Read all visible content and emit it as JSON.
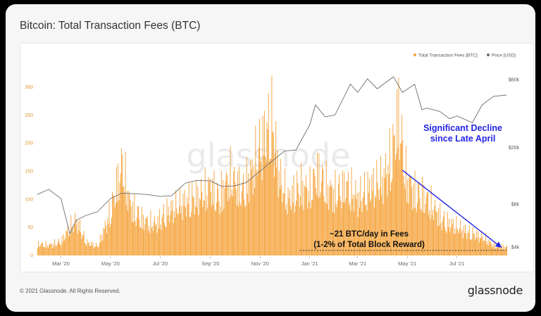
{
  "page": {
    "title": "Bitcoin: Total Transaction Fees (BTC)"
  },
  "footer": {
    "copyright": "© 2021 Glassnode. All Rights Reserved.",
    "brand": "glassnode"
  },
  "watermark": "glassnode",
  "colors": {
    "fees": "#f5a33a",
    "price": "#6e6e6e",
    "arrow": "#2424e6",
    "decline_text": "#2424e6",
    "background": "#f6f6f6"
  },
  "chart_data": {
    "type": "bar",
    "title": "Bitcoin: Total Transaction Fees (BTC)",
    "x_start": "2020-02-01",
    "x_end": "2021-08-31",
    "x_ticks": [
      "Mar '20",
      "May '20",
      "Jul '20",
      "Sep '20",
      "Nov '20",
      "Jan '21",
      "Mar '21",
      "May '21",
      "Jul '21"
    ],
    "y_left": {
      "ticks": [
        "0",
        "50",
        "100",
        "150",
        "200",
        "250",
        "300"
      ],
      "ylim": [
        0,
        330
      ]
    },
    "y_right": {
      "ticks": [
        "$4k",
        "$8k",
        "$20k",
        "$60k"
      ],
      "scale": "log",
      "ylim": [
        3500,
        70000
      ]
    },
    "legend": {
      "position": "top-right",
      "entries": [
        "Total Transaction Fees [BTC]",
        "Price [USD]"
      ]
    },
    "grid": false,
    "series": [
      {
        "name": "Total Transaction Fees [BTC]",
        "axis": "left",
        "style": "bar",
        "x": [
          "2020-02-01",
          "2020-02-15",
          "2020-03-01",
          "2020-03-12",
          "2020-03-20",
          "2020-04-01",
          "2020-04-15",
          "2020-05-01",
          "2020-05-08",
          "2020-05-15",
          "2020-05-25",
          "2020-06-10",
          "2020-06-25",
          "2020-07-10",
          "2020-07-25",
          "2020-08-05",
          "2020-08-20",
          "2020-09-01",
          "2020-09-10",
          "2020-09-25",
          "2020-10-10",
          "2020-10-20",
          "2020-10-27",
          "2020-11-05",
          "2020-11-15",
          "2020-11-25",
          "2020-12-05",
          "2020-12-20",
          "2021-01-01",
          "2021-01-10",
          "2021-01-20",
          "2021-02-01",
          "2021-02-15",
          "2021-03-01",
          "2021-03-15",
          "2021-04-01",
          "2021-04-12",
          "2021-04-20",
          "2021-04-28",
          "2021-05-10",
          "2021-05-20",
          "2021-06-01",
          "2021-06-15",
          "2021-07-01",
          "2021-07-15",
          "2021-08-01",
          "2021-08-15",
          "2021-08-31"
        ],
        "values": [
          25,
          22,
          30,
          62,
          75,
          28,
          20,
          95,
          150,
          195,
          110,
          75,
          68,
          95,
          110,
          120,
          130,
          150,
          125,
          170,
          140,
          175,
          210,
          250,
          290,
          165,
          120,
          150,
          140,
          180,
          150,
          135,
          150,
          125,
          145,
          165,
          215,
          310,
          175,
          135,
          130,
          105,
          75,
          62,
          50,
          40,
          22,
          18
        ]
      },
      {
        "name": "Price [USD]",
        "axis": "right",
        "style": "line",
        "x": [
          "2020-02-01",
          "2020-02-15",
          "2020-03-01",
          "2020-03-12",
          "2020-03-20",
          "2020-04-01",
          "2020-04-15",
          "2020-05-01",
          "2020-05-15",
          "2020-06-01",
          "2020-06-15",
          "2020-07-01",
          "2020-07-15",
          "2020-08-01",
          "2020-08-15",
          "2020-09-01",
          "2020-09-15",
          "2020-10-01",
          "2020-10-15",
          "2020-11-01",
          "2020-11-15",
          "2020-12-01",
          "2020-12-15",
          "2021-01-01",
          "2021-01-08",
          "2021-01-20",
          "2021-02-01",
          "2021-02-20",
          "2021-03-01",
          "2021-03-13",
          "2021-03-25",
          "2021-04-14",
          "2021-04-25",
          "2021-05-10",
          "2021-05-19",
          "2021-05-25",
          "2021-06-10",
          "2021-06-22",
          "2021-07-01",
          "2021-07-20",
          "2021-08-01",
          "2021-08-15",
          "2021-08-31"
        ],
        "values": [
          9400,
          10200,
          8800,
          5000,
          6200,
          6700,
          7100,
          8800,
          9600,
          9500,
          9400,
          9100,
          9200,
          11300,
          11800,
          11700,
          10700,
          10800,
          11400,
          13700,
          16000,
          19000,
          19300,
          29000,
          40000,
          33000,
          34000,
          56000,
          49000,
          61000,
          52000,
          63000,
          49000,
          56000,
          37000,
          38000,
          36000,
          32000,
          33500,
          30000,
          40000,
          46000,
          47000
        ]
      }
    ],
    "annotations": [
      {
        "text_lines": [
          "Significant Decline",
          "since Late April"
        ]
      },
      {
        "text_lines": [
          "~21 BTC/day in Fees",
          "(1-2% of Total Block Reward)"
        ]
      }
    ]
  }
}
